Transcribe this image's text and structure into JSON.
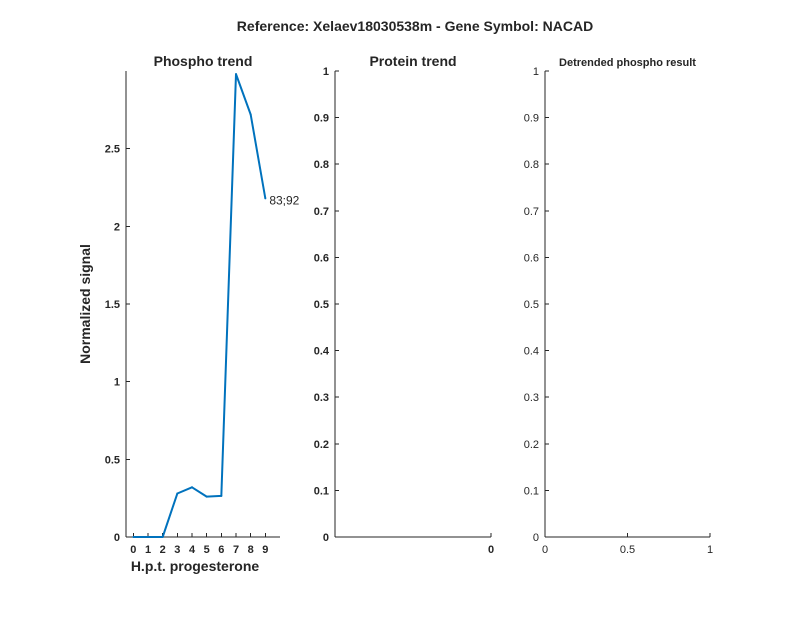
{
  "figure": {
    "title": "Reference:  Xelaev18030538m - Gene Symbol:  NACAD"
  },
  "chart_data": [
    {
      "type": "line",
      "title": "Phospho trend",
      "xlabel": "H.p.t. progesterone",
      "ylabel": "Normalized signal",
      "xlim": [
        -0.5,
        10
      ],
      "ylim": [
        0,
        3.0
      ],
      "x_ticks": [
        "0",
        "1",
        "2",
        "3",
        "4",
        "5",
        "6",
        "7",
        "8",
        "9"
      ],
      "y_ticks": [
        "0",
        "0.5",
        "1",
        "1.5",
        "2",
        "2.5"
      ],
      "series": [
        {
          "color": "#0072BD",
          "x": [
            0,
            2,
            3,
            4,
            5,
            6,
            7,
            8,
            9
          ],
          "values": [
            0.0,
            0.0,
            0.28,
            0.32,
            0.26,
            0.265,
            2.98,
            2.72,
            2.18
          ],
          "end_label": "83;92"
        }
      ]
    },
    {
      "type": "line",
      "title": "Protein trend",
      "xlabel": "",
      "ylabel": "",
      "xlim": [
        -1,
        0
      ],
      "ylim": [
        0,
        1
      ],
      "x_ticks": [
        "0"
      ],
      "y_ticks": [
        "0",
        "0.1",
        "0.2",
        "0.3",
        "0.4",
        "0.5",
        "0.6",
        "0.7",
        "0.8",
        "0.9",
        "1"
      ],
      "series": []
    },
    {
      "type": "line",
      "title": "Detrended phospho result",
      "xlabel": "",
      "ylabel": "",
      "xlim": [
        0,
        1
      ],
      "ylim": [
        0,
        1
      ],
      "x_ticks": [
        "0",
        "0.5",
        "1"
      ],
      "y_ticks": [
        "0",
        "0.1",
        "0.2",
        "0.3",
        "0.4",
        "0.5",
        "0.6",
        "0.7",
        "0.8",
        "0.9",
        "1"
      ],
      "series": []
    }
  ]
}
